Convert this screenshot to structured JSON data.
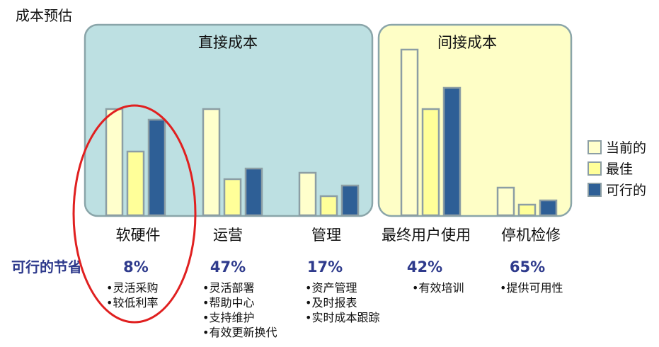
{
  "chart_data": {
    "type": "bar",
    "title": "成本预估",
    "groups": [
      {
        "label": "直接成本",
        "categories": [
          "软硬件",
          "运营",
          "管理"
        ]
      },
      {
        "label": "间接成本",
        "categories": [
          "最终用户使用",
          "停机检修"
        ]
      }
    ],
    "categories": [
      "软硬件",
      "运营",
      "管理",
      "最终用户使用",
      "停机检修"
    ],
    "series": [
      {
        "name": "当前的",
        "values": [
          50,
          50,
          20,
          78,
          13
        ]
      },
      {
        "name": "最佳",
        "values": [
          30,
          17,
          9,
          50,
          5
        ]
      },
      {
        "name": "可行的",
        "values": [
          45,
          22,
          14,
          60,
          7
        ]
      }
    ],
    "ylim": [
      0,
      90
    ],
    "grid": false,
    "legend_position": "right",
    "savings_label": "可行的节省",
    "savings": [
      "8%",
      "47%",
      "17%",
      "42%",
      "65%"
    ],
    "notes": [
      [
        "•灵活采购",
        "•较低利率"
      ],
      [
        "•灵活部署",
        "•帮助中心",
        "•支持维护",
        "•有效更新换代"
      ],
      [
        "•资产管理",
        "•及时报表",
        "•实时成本跟踪"
      ],
      [
        "•有效培训"
      ],
      [
        "•提供可用性"
      ]
    ],
    "highlight": "软硬件"
  },
  "colors": {
    "direct_panel": "#bde0e2",
    "indirect_panel": "#fefec6",
    "panel_border": "#8aa5a9",
    "current": "#ffffcc",
    "best": "#ffff99",
    "feasible": "#2e5f96",
    "bar_border": "#8c9ea4",
    "highlight_ring": "#e02020",
    "savings_text": "#2e3a8c"
  }
}
